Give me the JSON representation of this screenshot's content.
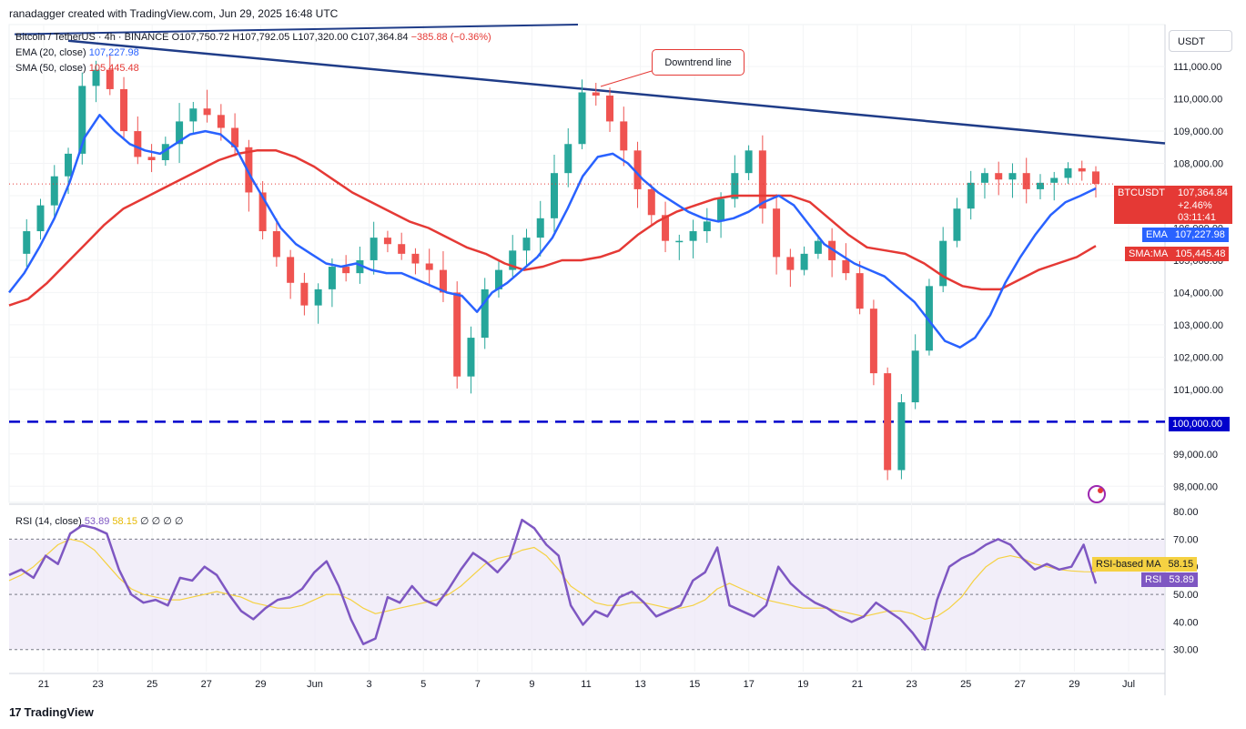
{
  "header": {
    "credit": "ranadagger created with TradingView.com, Jun 29, 2025 16:48 UTC"
  },
  "legend": {
    "symbol": "Bitcoin / TetherUS · 4h · BINANCE",
    "ohlc": "O107,750.72 H107,792.05 L107,320.00 C107,364.84",
    "change": "−385.88 (−0.36%)",
    "ema_label": "EMA (20, close)",
    "ema_value": "107,227.98",
    "sma_label": "SMA (50, close)",
    "sma_value": "105,445.48",
    "rsi_label": "RSI (14, close)",
    "rsi_value": "53.89",
    "rsi_ma_value": "58.15",
    "rsi_extra": "∅ ∅ ∅ ∅"
  },
  "currency": "USDT",
  "annotation": "Downtrend line",
  "price_tags": {
    "last_symbol": "BTCUSDT",
    "last_price": "107,364.84",
    "last_change": "+2.46%",
    "countdown": "03:11:41",
    "ema_label": "EMA",
    "ema_value": "107,227.98",
    "sma_label": "SMA:MA",
    "sma_value": "105,445.48",
    "support_value": "100,000.00",
    "rsi_ma_label": "RSI-based MA",
    "rsi_ma_value": "58.15",
    "rsi_label": "RSI",
    "rsi_value": "53.89"
  },
  "logo_text": "TradingView",
  "colors": {
    "up": "#26a69a",
    "down": "#ef5350",
    "ema": "#2962ff",
    "sma": "#e53935",
    "rsi": "#7e57c2",
    "rsi_ma": "#f5d142",
    "trendline": "#1f3c88",
    "support": "#0000cc",
    "rsi_band": "#ede7f6"
  },
  "chart_data": {
    "type": "candlestick",
    "timeframe": "4h",
    "price_axis": {
      "ylim": [
        97500,
        112300
      ],
      "ticks": [
        98000,
        99000,
        100000,
        101000,
        102000,
        103000,
        104000,
        105000,
        106000,
        107000,
        108000,
        109000,
        110000,
        111000
      ],
      "tick_labels": [
        "98,000.00",
        "99,000.00",
        "100,000.00",
        "101,000.00",
        "102,000.00",
        "103,000.00",
        "104,000.00",
        "105,000.00",
        "106,000.00",
        "107,000.00",
        "108,000.00",
        "109,000.00",
        "110,000.00",
        "111,000.00"
      ]
    },
    "x_axis": {
      "labels": [
        "21",
        "23",
        "25",
        "27",
        "29",
        "Jun",
        "3",
        "5",
        "7",
        "9",
        "11",
        "13",
        "15",
        "17",
        "19",
        "21",
        "23",
        "25",
        "27",
        "29",
        "Jul"
      ]
    },
    "price_series": [
      105200,
      105900,
      106700,
      107600,
      108300,
      110400,
      110900,
      110300,
      109000,
      108200,
      108100,
      108600,
      109300,
      109700,
      109500,
      109100,
      108500,
      107100,
      105900,
      105100,
      104300,
      103600,
      104100,
      104800,
      104600,
      105000,
      105700,
      105500,
      105200,
      104900,
      104700,
      104000,
      101400,
      102600,
      104100,
      104700,
      105300,
      105700,
      106300,
      107700,
      108600,
      110200,
      110100,
      109300,
      108400,
      107200,
      106400,
      105600,
      105600,
      105900,
      106200,
      106900,
      107700,
      108400,
      106600,
      105100,
      104700,
      105200,
      105600,
      105000,
      104600,
      103500,
      101500,
      98500,
      100600,
      102200,
      104200,
      105600,
      106600,
      107400,
      107700,
      107500,
      107700,
      107200,
      107400,
      107550,
      107850,
      107750,
      107365
    ],
    "ema20": [
      104000,
      104600,
      105400,
      106300,
      107400,
      108800,
      109500,
      109000,
      108600,
      108400,
      108300,
      108600,
      108900,
      109000,
      108900,
      108500,
      107600,
      106800,
      106000,
      105500,
      105200,
      104900,
      104800,
      104900,
      104700,
      104600,
      104600,
      104400,
      104200,
      104000,
      103900,
      103400,
      104000,
      104300,
      104700,
      105100,
      105700,
      106600,
      107600,
      108200,
      108300,
      108000,
      107500,
      107100,
      106800,
      106500,
      106300,
      106200,
      106300,
      106500,
      106800,
      107000,
      106700,
      106100,
      105500,
      105200,
      104900,
      104700,
      104500,
      104100,
      103700,
      103100,
      102500,
      102300,
      102600,
      103300,
      104300,
      105100,
      105800,
      106400,
      106800,
      107000,
      107227
    ],
    "sma50": [
      103600,
      103800,
      104300,
      104900,
      105500,
      106100,
      106600,
      106900,
      107200,
      107500,
      107800,
      108100,
      108300,
      108400,
      108400,
      108200,
      107900,
      107500,
      107100,
      106800,
      106500,
      106200,
      106000,
      105700,
      105400,
      105200,
      104900,
      104700,
      104800,
      105000,
      105000,
      105100,
      105300,
      105800,
      106200,
      106500,
      106700,
      106900,
      107000,
      107000,
      107000,
      107000,
      106800,
      106300,
      105800,
      105400,
      105300,
      105200,
      104900,
      104500,
      104200,
      104100,
      104100,
      104400,
      104700,
      104900,
      105100,
      105445
    ],
    "trendline": {
      "label": "Downtrend line",
      "points": [
        {
          "x": "May 21",
          "y": 111800
        },
        {
          "x": "Jun 30",
          "y": 108600
        }
      ]
    },
    "support_level": {
      "y": 100000,
      "label": "100,000.00"
    },
    "rsi": {
      "ylim": [
        22,
        82
      ],
      "ticks": [
        30,
        40,
        50,
        60,
        70,
        80
      ],
      "tick_labels": [
        "30.00",
        "40.00",
        "50.00",
        "60.00",
        "70.00",
        "80.00"
      ],
      "band": [
        30,
        70
      ],
      "rsi14": [
        57,
        59,
        56,
        64,
        61,
        72,
        75,
        74,
        72,
        59,
        50,
        47,
        48,
        46,
        56,
        55,
        60,
        57,
        50,
        44,
        41,
        45,
        48,
        49,
        52,
        58,
        62,
        53,
        41,
        32,
        34,
        49,
        47,
        53,
        48,
        46,
        52,
        59,
        65,
        62,
        58,
        63,
        77,
        74,
        68,
        64,
        46,
        39,
        44,
        42,
        49,
        51,
        47,
        42,
        44,
        46,
        55,
        58,
        67,
        46,
        44,
        42,
        46,
        60,
        54,
        50,
        47,
        45,
        42,
        40,
        42,
        47,
        44,
        41,
        36,
        30,
        48,
        60,
        63,
        65,
        68,
        70,
        68,
        63,
        59,
        61,
        59,
        60,
        68,
        53.89
      ],
      "rsi_ma": [
        55,
        57,
        60,
        64,
        68,
        70,
        69,
        66,
        61,
        56,
        52,
        50,
        49,
        48,
        48,
        49,
        50,
        51,
        50,
        49,
        47,
        46,
        45,
        45,
        46,
        48,
        50,
        50,
        48,
        45,
        43,
        44,
        45,
        46,
        47,
        48,
        50,
        53,
        57,
        61,
        63,
        64,
        66,
        67,
        64,
        59,
        53,
        50,
        47,
        46,
        46,
        47,
        47,
        46,
        45,
        45,
        46,
        48,
        52,
        54,
        52,
        50,
        48,
        47,
        46,
        45,
        45,
        45,
        44,
        43,
        42,
        43,
        44,
        44,
        43,
        41,
        42,
        45,
        49,
        55,
        60,
        63,
        64,
        63,
        61,
        60,
        59,
        58.5,
        58.2,
        58.15
      ]
    }
  }
}
